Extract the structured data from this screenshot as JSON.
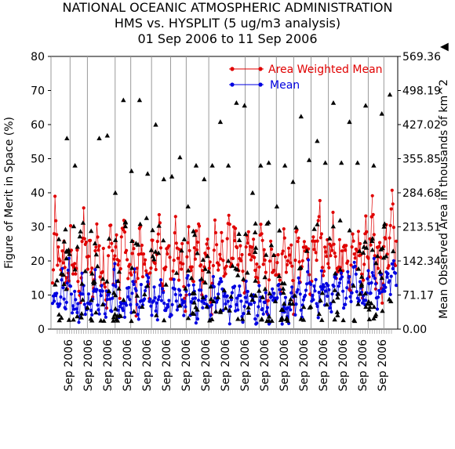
{
  "chart_data": {
    "type": "line",
    "title": [
      "NATIONAL OCEANIC ATMOSPHERIC ADMINISTRATION",
      "HMS vs. HYSPLIT (5 ug/m3 analysis)",
      "01 Sep 2006 to 11 Sep 2006"
    ],
    "ylabel": "Figure of Merit in Space (%)",
    "y2label": "Mean Observed Area in thousands of km^2",
    "ylim": [
      0,
      80
    ],
    "y2lim": [
      0,
      569.36
    ],
    "yticks": [
      "0",
      "10",
      "20",
      "30",
      "40",
      "50",
      "60",
      "70",
      "80"
    ],
    "y2ticks": [
      "0.00",
      "71.17",
      "142.34",
      "213.51",
      "284.68",
      "355.85",
      "427.02",
      "498.19",
      "569.36"
    ],
    "xticklabels": [
      "Sep 2006",
      "Sep 2006",
      "Sep 2006",
      "Sep 2006",
      "Sep 2006",
      "Sep 2006",
      "Sep 2006",
      "Sep 2006",
      "Sep 2006",
      "Sep 2006",
      "Sep 2006",
      "Sep 2006",
      "Sep 2006",
      "Sep 2006",
      "Sep 2006",
      "Sep 2006",
      "Sep 2006"
    ],
    "legend": [
      {
        "name": "Area Weighted Mean",
        "color": "#e00000"
      },
      {
        "name": "Mean",
        "color": "#0000e0"
      }
    ],
    "y2_marker": "▲",
    "n_points": 420,
    "vline_positions": [
      0.0,
      0.055,
      0.105,
      0.185,
      0.23,
      0.29,
      0.345,
      0.39,
      0.455,
      0.56,
      0.6,
      0.65,
      0.7,
      0.75,
      0.8,
      0.865,
      0.915,
      0.96
    ],
    "series": [
      {
        "name": "Area Weighted Mean",
        "color": "#e00000",
        "anchors": [
          [
            0,
            12
          ],
          [
            3,
            34
          ],
          [
            6,
            22
          ],
          [
            10,
            15
          ],
          [
            14,
            25
          ],
          [
            18,
            8
          ],
          [
            22,
            28
          ],
          [
            26,
            14
          ],
          [
            30,
            20
          ],
          [
            34,
            9
          ],
          [
            38,
            33
          ],
          [
            42,
            18
          ],
          [
            46,
            24
          ],
          [
            50,
            10
          ],
          [
            54,
            32
          ],
          [
            58,
            16
          ],
          [
            62,
            22
          ],
          [
            66,
            7
          ],
          [
            70,
            30
          ],
          [
            74,
            18
          ],
          [
            78,
            26
          ],
          [
            82,
            12
          ],
          [
            86,
            34
          ],
          [
            90,
            20
          ],
          [
            94,
            14
          ],
          [
            98,
            24
          ],
          [
            102,
            8
          ],
          [
            106,
            30
          ],
          [
            110,
            18
          ],
          [
            114,
            22
          ],
          [
            118,
            6
          ],
          [
            122,
            28
          ],
          [
            126,
            16
          ],
          [
            130,
            32
          ],
          [
            134,
            12
          ],
          [
            138,
            20
          ],
          [
            142,
            27
          ],
          [
            146,
            10
          ],
          [
            150,
            30
          ],
          [
            154,
            18
          ],
          [
            158,
            24
          ],
          [
            162,
            9
          ],
          [
            166,
            28
          ],
          [
            170,
            14
          ],
          [
            174,
            22
          ],
          [
            178,
            30
          ],
          [
            182,
            12
          ],
          [
            186,
            20
          ],
          [
            190,
            26
          ],
          [
            194,
            8
          ],
          [
            198,
            30
          ],
          [
            202,
            18
          ],
          [
            206,
            24
          ],
          [
            210,
            14
          ],
          [
            214,
            32
          ],
          [
            218,
            20
          ],
          [
            222,
            28
          ],
          [
            226,
            16
          ],
          [
            230,
            22
          ],
          [
            234,
            10
          ],
          [
            238,
            30
          ],
          [
            242,
            18
          ],
          [
            246,
            24
          ],
          [
            250,
            12
          ],
          [
            254,
            28
          ],
          [
            258,
            20
          ],
          [
            262,
            8
          ],
          [
            266,
            26
          ],
          [
            270,
            16
          ],
          [
            274,
            22
          ],
          [
            278,
            10
          ],
          [
            282,
            28
          ],
          [
            286,
            18
          ],
          [
            290,
            24
          ],
          [
            294,
            7
          ],
          [
            298,
            30
          ],
          [
            302,
            14
          ],
          [
            306,
            22
          ],
          [
            310,
            28
          ],
          [
            314,
            12
          ],
          [
            318,
            24
          ],
          [
            322,
            18
          ],
          [
            326,
            36
          ],
          [
            330,
            14
          ],
          [
            334,
            26
          ],
          [
            338,
            20
          ],
          [
            342,
            30
          ],
          [
            346,
            12
          ],
          [
            350,
            24
          ],
          [
            354,
            18
          ],
          [
            358,
            28
          ],
          [
            362,
            10
          ],
          [
            366,
            32
          ],
          [
            370,
            20
          ],
          [
            374,
            26
          ],
          [
            378,
            14
          ],
          [
            382,
            30
          ],
          [
            386,
            18
          ],
          [
            390,
            41
          ],
          [
            394,
            16
          ],
          [
            398,
            24
          ],
          [
            402,
            12
          ],
          [
            406,
            28
          ],
          [
            410,
            20
          ],
          [
            414,
            41
          ],
          [
            418,
            18
          ],
          [
            419,
            22
          ]
        ],
        "amp": 5
      },
      {
        "name": "Mean",
        "color": "#0000e0",
        "anchors": [
          [
            0,
            6
          ],
          [
            4,
            12
          ],
          [
            8,
            5
          ],
          [
            12,
            15
          ],
          [
            16,
            4
          ],
          [
            20,
            18
          ],
          [
            24,
            6
          ],
          [
            28,
            10
          ],
          [
            32,
            4
          ],
          [
            36,
            14
          ],
          [
            40,
            6
          ],
          [
            44,
            9
          ],
          [
            48,
            3
          ],
          [
            52,
            16
          ],
          [
            56,
            6
          ],
          [
            60,
            11
          ],
          [
            64,
            4
          ],
          [
            68,
            13
          ],
          [
            72,
            6
          ],
          [
            76,
            19
          ],
          [
            80,
            5
          ],
          [
            84,
            10
          ],
          [
            88,
            3
          ],
          [
            92,
            12
          ],
          [
            96,
            6
          ],
          [
            100,
            17
          ],
          [
            104,
            4
          ],
          [
            108,
            11
          ],
          [
            112,
            7
          ],
          [
            116,
            16
          ],
          [
            120,
            5
          ],
          [
            124,
            10
          ],
          [
            128,
            4
          ],
          [
            132,
            13
          ],
          [
            136,
            6
          ],
          [
            140,
            9
          ],
          [
            144,
            3
          ],
          [
            148,
            14
          ],
          [
            152,
            7
          ],
          [
            156,
            11
          ],
          [
            160,
            4
          ],
          [
            164,
            15
          ],
          [
            168,
            6
          ],
          [
            172,
            10
          ],
          [
            176,
            3
          ],
          [
            180,
            12
          ],
          [
            184,
            6
          ],
          [
            188,
            9
          ],
          [
            192,
            2
          ],
          [
            196,
            13
          ],
          [
            200,
            5
          ],
          [
            204,
            16
          ],
          [
            208,
            7
          ],
          [
            212,
            11
          ],
          [
            216,
            4
          ],
          [
            220,
            14
          ],
          [
            224,
            6
          ],
          [
            228,
            10
          ],
          [
            232,
            3
          ],
          [
            236,
            12
          ],
          [
            240,
            5
          ],
          [
            244,
            9
          ],
          [
            248,
            2
          ],
          [
            252,
            11
          ],
          [
            256,
            5
          ],
          [
            260,
            8
          ],
          [
            264,
            3
          ],
          [
            268,
            10
          ],
          [
            272,
            6
          ],
          [
            276,
            12
          ],
          [
            280,
            4
          ],
          [
            284,
            9
          ],
          [
            288,
            3
          ],
          [
            292,
            13
          ],
          [
            296,
            7
          ],
          [
            300,
            15
          ],
          [
            304,
            5
          ],
          [
            308,
            11
          ],
          [
            312,
            18
          ],
          [
            316,
            8
          ],
          [
            320,
            14
          ],
          [
            324,
            6
          ],
          [
            328,
            16
          ],
          [
            332,
            9
          ],
          [
            336,
            13
          ],
          [
            340,
            5
          ],
          [
            344,
            18
          ],
          [
            348,
            10
          ],
          [
            352,
            15
          ],
          [
            356,
            7
          ],
          [
            360,
            17
          ],
          [
            364,
            11
          ],
          [
            368,
            20
          ],
          [
            372,
            8
          ],
          [
            376,
            14
          ],
          [
            380,
            6
          ],
          [
            384,
            16
          ],
          [
            388,
            11
          ],
          [
            392,
            18
          ],
          [
            396,
            8
          ],
          [
            400,
            15
          ],
          [
            404,
            10
          ],
          [
            408,
            17
          ],
          [
            412,
            12
          ],
          [
            416,
            22
          ],
          [
            419,
            14
          ]
        ],
        "amp": 3
      },
      {
        "name": "",
        "axis": "y2",
        "color": "#000000",
        "values_y2_fraction_peaks": [
          0.33,
          0.7,
          0.6,
          0.39,
          0.36,
          0.7,
          0.71,
          0.5,
          0.84,
          0.58,
          0.84,
          0.57,
          0.75,
          0.55,
          0.56,
          0.63,
          0.45,
          0.6,
          0.55,
          0.6,
          0.76,
          0.6,
          0.83,
          0.82,
          0.5,
          0.6,
          0.61,
          0.45,
          0.6,
          0.54,
          0.78,
          0.62,
          0.69,
          0.61,
          0.83,
          0.61,
          0.76,
          0.61,
          0.82,
          0.6,
          0.79,
          0.86
        ]
      }
    ]
  }
}
